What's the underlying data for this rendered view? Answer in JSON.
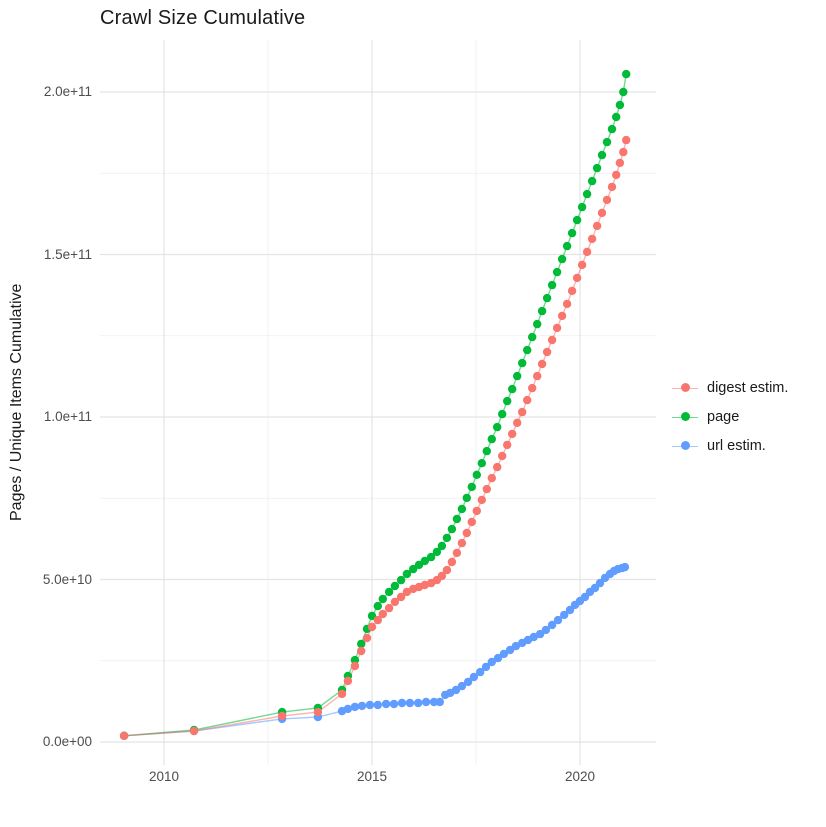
{
  "title": "Crawl Size Cumulative",
  "y_axis_title": "Pages / Unique Items Cumulative",
  "legend": {
    "items": [
      {
        "label": "digest estim.",
        "color": "#F8766D"
      },
      {
        "label": "page",
        "color": "#00BA38"
      },
      {
        "label": "url estim.",
        "color": "#619CFF"
      }
    ]
  },
  "chart_data": {
    "type": "scatter",
    "style": "points-with-lines",
    "title": "Crawl Size Cumulative",
    "xlabel": "",
    "ylabel": "Pages / Unique Items Cumulative",
    "units": "values in 1e9 (billions) of pages / unique items",
    "xlim": [
      2008.45,
      2021.8
    ],
    "ylim_e9": [
      -7,
      216
    ],
    "grid": "on",
    "legend_position": "right",
    "x_ticks": {
      "major": [
        {
          "label": "2010",
          "value": 2010
        },
        {
          "label": "2015",
          "value": 2015
        },
        {
          "label": "2020",
          "value": 2020
        }
      ],
      "minor_values": [
        2012.5,
        2017.5
      ]
    },
    "y_ticks": {
      "major": [
        {
          "label": "0.0e+00",
          "value_e9": 0
        },
        {
          "label": "5.0e+10",
          "value_e9": 50
        },
        {
          "label": "1.0e+11",
          "value_e9": 100
        },
        {
          "label": "1.5e+11",
          "value_e9": 150
        },
        {
          "label": "2.0e+11",
          "value_e9": 200
        }
      ],
      "minor_values_e9": [
        25,
        75,
        125,
        175
      ]
    },
    "series": [
      {
        "name": "digest estim.",
        "color": "#F8766D",
        "points": [
          [
            2009.04,
            1.9
          ],
          [
            2010.72,
            3.4
          ],
          [
            2012.84,
            8.0
          ],
          [
            2013.7,
            9.2
          ],
          [
            2014.28,
            14.8
          ],
          [
            2014.42,
            18.8
          ],
          [
            2014.59,
            23.4
          ],
          [
            2014.74,
            28.0
          ],
          [
            2014.88,
            32.0
          ],
          [
            2015.0,
            35.4
          ],
          [
            2015.14,
            37.5
          ],
          [
            2015.26,
            39.4
          ],
          [
            2015.41,
            41.2
          ],
          [
            2015.55,
            43.1
          ],
          [
            2015.7,
            44.6
          ],
          [
            2015.84,
            46.2
          ],
          [
            2015.99,
            47.1
          ],
          [
            2016.13,
            47.7
          ],
          [
            2016.27,
            48.3
          ],
          [
            2016.42,
            48.9
          ],
          [
            2016.56,
            49.8
          ],
          [
            2016.68,
            51.1
          ],
          [
            2016.8,
            52.9
          ],
          [
            2016.92,
            55.4
          ],
          [
            2017.04,
            58.2
          ],
          [
            2017.16,
            61.2
          ],
          [
            2017.28,
            64.3
          ],
          [
            2017.4,
            67.7
          ],
          [
            2017.52,
            71.1
          ],
          [
            2017.64,
            74.5
          ],
          [
            2017.76,
            77.8
          ],
          [
            2017.88,
            81.2
          ],
          [
            2018.01,
            84.6
          ],
          [
            2018.13,
            88.0
          ],
          [
            2018.25,
            91.4
          ],
          [
            2018.37,
            94.8
          ],
          [
            2018.49,
            98.2
          ],
          [
            2018.61,
            101.5
          ],
          [
            2018.73,
            105.2
          ],
          [
            2018.85,
            108.9
          ],
          [
            2018.97,
            112.6
          ],
          [
            2019.09,
            116.3
          ],
          [
            2019.21,
            120.0
          ],
          [
            2019.33,
            123.7
          ],
          [
            2019.45,
            127.4
          ],
          [
            2019.57,
            131.1
          ],
          [
            2019.69,
            134.8
          ],
          [
            2019.81,
            138.8
          ],
          [
            2019.93,
            142.8
          ],
          [
            2020.05,
            146.8
          ],
          [
            2020.17,
            150.8
          ],
          [
            2020.29,
            154.8
          ],
          [
            2020.41,
            158.8
          ],
          [
            2020.53,
            162.8
          ],
          [
            2020.65,
            166.8
          ],
          [
            2020.77,
            170.8
          ],
          [
            2020.87,
            174.5
          ],
          [
            2020.96,
            178.2
          ],
          [
            2021.04,
            181.5
          ],
          [
            2021.11,
            185.2
          ]
        ]
      },
      {
        "name": "page",
        "color": "#00BA38",
        "points": [
          [
            2009.04,
            1.9
          ],
          [
            2010.72,
            3.7
          ],
          [
            2012.84,
            9.2
          ],
          [
            2013.7,
            10.5
          ],
          [
            2014.28,
            16.0
          ],
          [
            2014.42,
            20.3
          ],
          [
            2014.59,
            25.2
          ],
          [
            2014.74,
            30.2
          ],
          [
            2014.88,
            34.8
          ],
          [
            2015.0,
            38.8
          ],
          [
            2015.14,
            41.8
          ],
          [
            2015.26,
            44.0
          ],
          [
            2015.41,
            46.2
          ],
          [
            2015.55,
            48.0
          ],
          [
            2015.7,
            49.8
          ],
          [
            2015.84,
            51.7
          ],
          [
            2015.99,
            53.2
          ],
          [
            2016.13,
            54.5
          ],
          [
            2016.27,
            55.7
          ],
          [
            2016.42,
            56.9
          ],
          [
            2016.56,
            58.5
          ],
          [
            2016.68,
            60.3
          ],
          [
            2016.8,
            62.8
          ],
          [
            2016.92,
            65.5
          ],
          [
            2017.04,
            68.6
          ],
          [
            2017.16,
            71.7
          ],
          [
            2017.28,
            75.1
          ],
          [
            2017.4,
            78.5
          ],
          [
            2017.52,
            82.2
          ],
          [
            2017.64,
            85.8
          ],
          [
            2017.76,
            89.5
          ],
          [
            2017.88,
            93.2
          ],
          [
            2018.01,
            96.9
          ],
          [
            2018.13,
            100.9
          ],
          [
            2018.25,
            104.9
          ],
          [
            2018.37,
            108.6
          ],
          [
            2018.49,
            112.6
          ],
          [
            2018.61,
            116.6
          ],
          [
            2018.73,
            120.6
          ],
          [
            2018.85,
            124.6
          ],
          [
            2018.97,
            128.6
          ],
          [
            2019.09,
            132.6
          ],
          [
            2019.21,
            136.6
          ],
          [
            2019.33,
            140.6
          ],
          [
            2019.45,
            144.6
          ],
          [
            2019.57,
            148.6
          ],
          [
            2019.69,
            152.6
          ],
          [
            2019.81,
            156.6
          ],
          [
            2019.93,
            160.6
          ],
          [
            2020.05,
            164.6
          ],
          [
            2020.17,
            168.6
          ],
          [
            2020.29,
            172.6
          ],
          [
            2020.41,
            176.6
          ],
          [
            2020.53,
            180.6
          ],
          [
            2020.65,
            184.6
          ],
          [
            2020.77,
            188.6
          ],
          [
            2020.87,
            192.3
          ],
          [
            2020.96,
            196.0
          ],
          [
            2021.04,
            200.0
          ],
          [
            2021.11,
            205.5
          ]
        ]
      },
      {
        "name": "url estim.",
        "color": "#619CFF",
        "points": [
          [
            2009.04,
            1.9
          ],
          [
            2010.72,
            3.4
          ],
          [
            2012.84,
            7.1
          ],
          [
            2013.7,
            7.7
          ],
          [
            2014.28,
            9.5
          ],
          [
            2014.42,
            10.2
          ],
          [
            2014.59,
            10.8
          ],
          [
            2014.76,
            11.1
          ],
          [
            2014.95,
            11.4
          ],
          [
            2015.14,
            11.4
          ],
          [
            2015.34,
            11.7
          ],
          [
            2015.53,
            11.7
          ],
          [
            2015.72,
            12.0
          ],
          [
            2015.91,
            12.0
          ],
          [
            2016.11,
            12.0
          ],
          [
            2016.3,
            12.3
          ],
          [
            2016.49,
            12.3
          ],
          [
            2016.63,
            12.3
          ],
          [
            2016.76,
            14.5
          ],
          [
            2016.88,
            15.1
          ],
          [
            2017.02,
            16.0
          ],
          [
            2017.16,
            17.2
          ],
          [
            2017.31,
            18.5
          ],
          [
            2017.45,
            20.0
          ],
          [
            2017.6,
            21.5
          ],
          [
            2017.74,
            23.1
          ],
          [
            2017.88,
            24.6
          ],
          [
            2018.03,
            25.8
          ],
          [
            2018.17,
            27.1
          ],
          [
            2018.32,
            28.3
          ],
          [
            2018.46,
            29.5
          ],
          [
            2018.61,
            30.5
          ],
          [
            2018.75,
            31.4
          ],
          [
            2018.89,
            32.3
          ],
          [
            2019.04,
            33.2
          ],
          [
            2019.18,
            34.5
          ],
          [
            2019.33,
            36.0
          ],
          [
            2019.47,
            37.5
          ],
          [
            2019.62,
            39.1
          ],
          [
            2019.76,
            40.6
          ],
          [
            2019.88,
            42.2
          ],
          [
            2020.0,
            43.4
          ],
          [
            2020.12,
            44.6
          ],
          [
            2020.24,
            46.2
          ],
          [
            2020.36,
            47.4
          ],
          [
            2020.48,
            48.9
          ],
          [
            2020.6,
            50.5
          ],
          [
            2020.72,
            51.7
          ],
          [
            2020.82,
            52.6
          ],
          [
            2020.91,
            53.2
          ],
          [
            2021.01,
            53.5
          ],
          [
            2021.08,
            53.8
          ]
        ]
      }
    ]
  }
}
